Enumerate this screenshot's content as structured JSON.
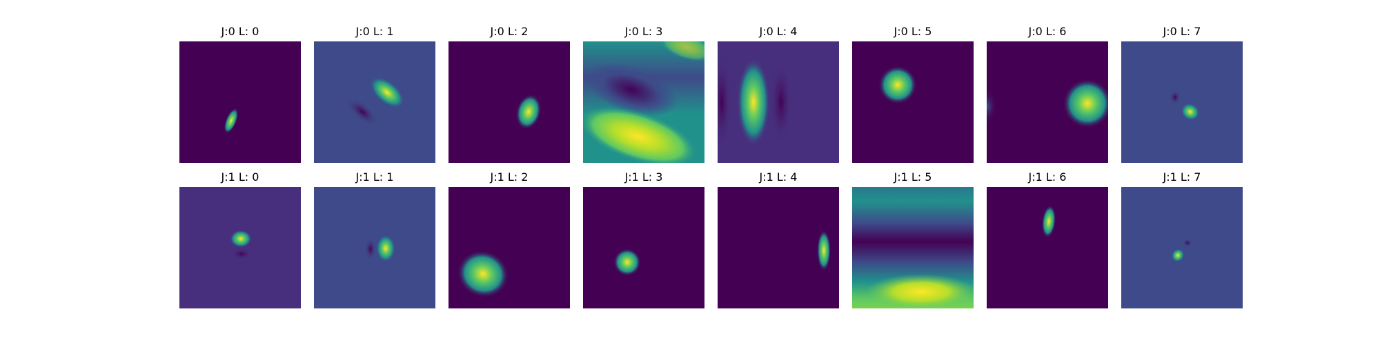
{
  "figure": {
    "rows": [
      {
        "panels": [
          {
            "title": "J:0 L: 0"
          },
          {
            "title": "J:0 L: 1"
          },
          {
            "title": "J:0 L: 2"
          },
          {
            "title": "J:0 L: 3"
          },
          {
            "title": "J:0 L: 4"
          },
          {
            "title": "J:0 L: 5"
          },
          {
            "title": "J:0 L: 6"
          },
          {
            "title": "J:0 L: 7"
          }
        ]
      },
      {
        "panels": [
          {
            "title": "J:1 L: 0"
          },
          {
            "title": "J:1 L: 1"
          },
          {
            "title": "J:1 L: 2"
          },
          {
            "title": "J:1 L: 3"
          },
          {
            "title": "J:1 L: 4"
          },
          {
            "title": "J:1 L: 5"
          },
          {
            "title": "J:1 L: 6"
          },
          {
            "title": "J:1 L: 7"
          }
        ]
      }
    ],
    "colormap": "viridis",
    "colors": {
      "background": "#ffffff",
      "viridis_dark": "#440154",
      "viridis_indigo": "#3e4a89",
      "viridis_teal": "#21918c",
      "viridis_green": "#5ec962",
      "viridis_yellow": "#fde725"
    }
  }
}
